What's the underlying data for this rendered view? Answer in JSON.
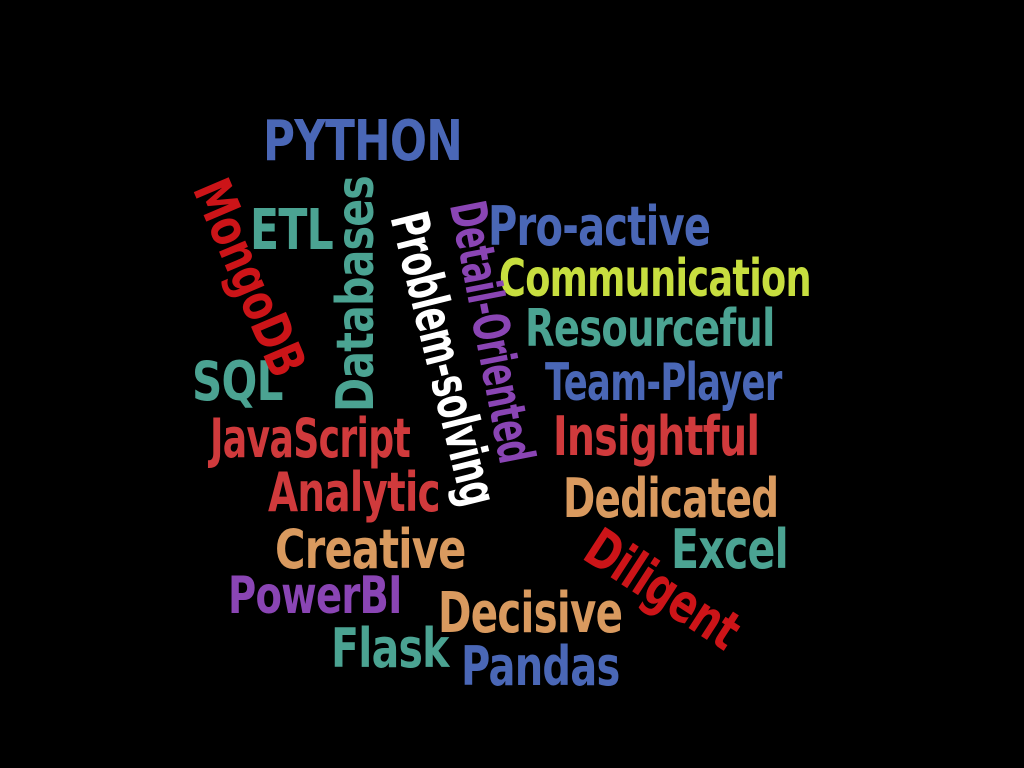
{
  "colors": {
    "background": "#000000",
    "blue": "#4a67b6",
    "teal": "#4ba392",
    "red": "#d03a3c",
    "crimson": "#cc1418",
    "lime": "#c7de3f",
    "orange": "#d99a5f",
    "purple": "#8a45b4",
    "white": "#ffffff"
  },
  "words": {
    "python": "PYTHON",
    "mongodb": "MongoDB",
    "etl": "ETL",
    "databases": "Databases",
    "problem_solving": "Problem-solving",
    "detail_oriented": "Detail-Oriented",
    "pro_active": "Pro-active",
    "communication": "Communication",
    "resourceful": "Resourceful",
    "sql": "SQL",
    "team_player": "Team-Player",
    "javascript": "JavaScript",
    "insightful": "Insightful",
    "analytic": "Analytic",
    "dedicated": "Dedicated",
    "creative": "Creative",
    "excel": "Excel",
    "diligent": "Diligent",
    "powerbi": "PowerBI",
    "decisive": "Decisive",
    "flask": "Flask",
    "pandas": "Pandas"
  }
}
